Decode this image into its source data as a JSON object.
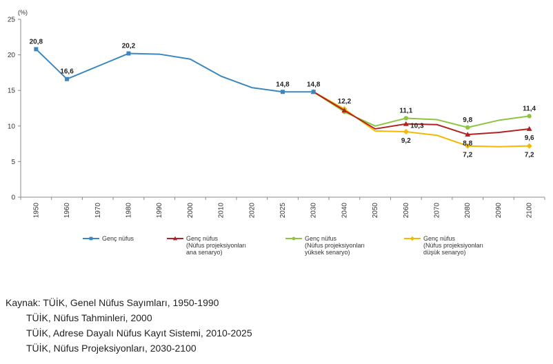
{
  "chart_data": {
    "type": "line",
    "unit_label": "(%)",
    "ylim": [
      0,
      25
    ],
    "yticks": [
      0,
      5,
      10,
      15,
      20,
      25
    ],
    "categories": [
      "1950",
      "1960",
      "1970",
      "1980",
      "1990",
      "2000",
      "2010",
      "2020",
      "2025",
      "2030",
      "2040",
      "2050",
      "2060",
      "2070",
      "2080",
      "2090",
      "2100"
    ],
    "grid": false,
    "legend_position": "bottom",
    "series": [
      {
        "name": "Genç nüfus",
        "name_lines": [
          "Genç nüfus"
        ],
        "color": "#3a87c0",
        "marker": "square",
        "values": [
          20.8,
          16.6,
          18.4,
          20.2,
          20.1,
          19.4,
          17.0,
          15.4,
          14.8,
          14.8,
          null,
          null,
          null,
          null,
          null,
          null,
          null
        ],
        "labels": {
          "0": "20,8",
          "1": "16,6",
          "3": "20,2",
          "8": "14,8",
          "9": "14,8"
        },
        "marker_points": [
          0,
          1,
          3,
          8,
          9
        ]
      },
      {
        "name": "Genç nüfus (Nüfus projeksiyonları ana senaryo)",
        "name_lines": [
          "Genç nüfus",
          "(Nüfus projeksiyonları",
          "ana senaryo)"
        ],
        "color": "#b22222",
        "marker": "triangle",
        "values": [
          null,
          null,
          null,
          null,
          null,
          null,
          null,
          null,
          null,
          14.8,
          12.2,
          9.6,
          10.3,
          10.2,
          8.8,
          9.1,
          9.6
        ],
        "labels": {
          "10": "12,2",
          "12": "10,3",
          "14": "8,8",
          "16": "9,6"
        },
        "marker_points": [
          9,
          10,
          12,
          14,
          16
        ]
      },
      {
        "name": "Genç nüfus (Nüfus projeksiyonları yüksek senaryo)",
        "name_lines": [
          "Genç nüfus",
          "(Nüfus projeksiyonları",
          "yüksek senaryo)"
        ],
        "color": "#8cc63f",
        "marker": "circle",
        "values": [
          null,
          null,
          null,
          null,
          null,
          null,
          null,
          null,
          null,
          14.8,
          12.0,
          10.0,
          11.1,
          10.9,
          9.8,
          10.8,
          11.4
        ],
        "labels": {
          "12": "11,1",
          "14": "9,8",
          "16": "11,4"
        },
        "marker_points": [
          10,
          12,
          14,
          16
        ]
      },
      {
        "name": "Genç nüfus (Nüfus projeksiyonları düşük senaryo)",
        "name_lines": [
          "Genç nüfus",
          "(Nüfus projeksiyonları",
          "düşük senaryo)"
        ],
        "color": "#f5b800",
        "marker": "diamond",
        "values": [
          null,
          null,
          null,
          null,
          null,
          null,
          null,
          null,
          null,
          14.8,
          12.4,
          9.3,
          9.2,
          8.7,
          7.2,
          7.1,
          7.2
        ],
        "labels": {
          "12": "9,2",
          "14": "7,2",
          "16": "7,2"
        },
        "marker_points": [
          10,
          12,
          14,
          16
        ]
      }
    ]
  },
  "source": {
    "lines": [
      "Kaynak: TÜİK, Genel Nüfus Sayımları, 1950-1990",
      "TÜİK, Nüfus Tahminleri, 2000",
      "TÜİK, Adrese Dayalı Nüfus Kayıt Sistemi, 2010-2025",
      "TÜİK, Nüfus Projeksiyonları, 2030-2100"
    ]
  }
}
